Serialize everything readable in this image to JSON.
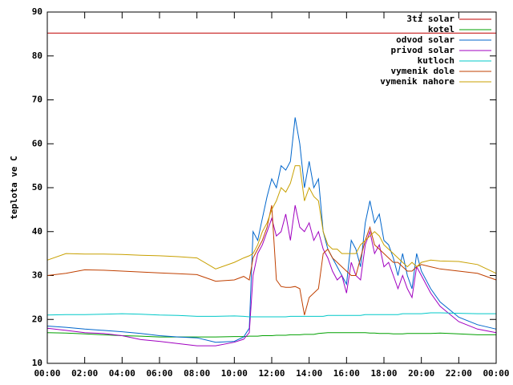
{
  "chart_data": {
    "type": "line",
    "ylabel": "teplota ve C",
    "xlim": [
      0,
      24
    ],
    "xticks": [
      {
        "value": 0,
        "label": "00:00"
      },
      {
        "value": 2,
        "label": "02:00"
      },
      {
        "value": 4,
        "label": "04:00"
      },
      {
        "value": 6,
        "label": "06:00"
      },
      {
        "value": 8,
        "label": "08:00"
      },
      {
        "value": 10,
        "label": "10:00"
      },
      {
        "value": 12,
        "label": "12:00"
      },
      {
        "value": 14,
        "label": "14:00"
      },
      {
        "value": 16,
        "label": "16:00"
      },
      {
        "value": 18,
        "label": "18:00"
      },
      {
        "value": 20,
        "label": "20:00"
      },
      {
        "value": 22,
        "label": "22:00"
      },
      {
        "value": 24,
        "label": "00:00"
      }
    ],
    "ylim": [
      10,
      90
    ],
    "yticks": [
      10,
      20,
      30,
      40,
      50,
      60,
      70,
      80,
      90
    ],
    "legend": "top-right",
    "x": [
      0,
      1,
      2,
      3,
      4,
      5,
      6,
      7,
      8,
      9,
      10,
      10.5,
      10.8,
      11,
      11.25,
      11.5,
      11.75,
      12,
      12.25,
      12.5,
      12.75,
      13,
      13.25,
      13.5,
      13.75,
      14,
      14.25,
      14.5,
      14.75,
      15,
      15.25,
      15.5,
      15.75,
      16,
      16.25,
      16.5,
      16.75,
      17,
      17.25,
      17.5,
      17.75,
      18,
      18.25,
      18.5,
      18.75,
      19,
      19.25,
      19.5,
      19.75,
      20,
      20.5,
      21,
      22,
      23,
      24
    ],
    "series": [
      {
        "name": "3ti solar",
        "color": "#c00000",
        "values": [
          85.2,
          85.2,
          85.2,
          85.2,
          85.2,
          85.2,
          85.2,
          85.2,
          85.2,
          85.2,
          85.2,
          85.2,
          85.2,
          85.2,
          85.2,
          85.2,
          85.2,
          85.2,
          85.2,
          85.2,
          85.2,
          85.2,
          85.2,
          85.2,
          85.2,
          85.2,
          85.2,
          85.2,
          85.2,
          85.2,
          85.2,
          85.2,
          85.2,
          85.2,
          85.2,
          85.2,
          85.2,
          85.2,
          85.2,
          85.2,
          85.2,
          85.2,
          85.2,
          85.2,
          85.2,
          85.2,
          85.2,
          85.2,
          85.2,
          85.2,
          85.2,
          85.2,
          85.2,
          85.2,
          85.2
        ]
      },
      {
        "name": "kotel",
        "color": "#00a000",
        "values": [
          17,
          16.9,
          16.7,
          16.5,
          16.3,
          16.2,
          16,
          16,
          16,
          16,
          16.1,
          16.1,
          16.2,
          16.2,
          16.2,
          16.3,
          16.3,
          16.3,
          16.4,
          16.4,
          16.4,
          16.5,
          16.5,
          16.5,
          16.6,
          16.6,
          16.6,
          16.8,
          16.9,
          17,
          17,
          17,
          17,
          17,
          17,
          17,
          17,
          17,
          16.9,
          16.9,
          16.8,
          16.8,
          16.8,
          16.7,
          16.7,
          16.7,
          16.8,
          16.8,
          16.8,
          16.8,
          16.8,
          16.9,
          16.7,
          16.5,
          16.5
        ]
      },
      {
        "name": "odvod solar",
        "color": "#0066cc",
        "values": [
          18.5,
          18.2,
          17.8,
          17.5,
          17.2,
          16.8,
          16.3,
          16,
          15.8,
          14.8,
          15,
          16,
          18,
          40,
          38,
          43,
          48,
          52,
          50,
          55,
          54,
          56,
          66,
          60,
          50,
          56,
          50,
          52,
          40,
          36,
          34,
          32,
          30,
          28,
          38,
          36,
          32,
          42,
          47,
          42,
          44,
          38,
          37,
          34,
          30,
          35,
          30,
          27,
          35,
          31,
          27,
          24,
          20.5,
          18.8,
          17.8
        ]
      },
      {
        "name": "privod solar",
        "color": "#a000c0",
        "values": [
          18,
          17.5,
          17,
          16.8,
          16.3,
          15.4,
          15,
          14.5,
          14,
          14,
          14.8,
          15.5,
          17,
          30,
          35,
          37,
          40,
          43,
          39,
          40,
          44,
          38,
          46,
          41,
          40,
          42,
          38,
          40,
          36,
          34,
          31,
          29,
          30,
          26,
          33,
          30,
          29,
          37,
          40,
          35,
          37,
          32,
          33,
          30,
          27,
          30,
          27,
          25,
          32,
          30,
          26,
          23,
          19.5,
          17.8,
          17
        ]
      },
      {
        "name": "kutloch",
        "color": "#00c8c8",
        "values": [
          21,
          21.1,
          21.1,
          21.2,
          21.3,
          21.2,
          21,
          20.9,
          20.7,
          20.7,
          20.8,
          20.7,
          20.6,
          20.6,
          20.6,
          20.6,
          20.6,
          20.6,
          20.6,
          20.6,
          20.6,
          20.7,
          20.7,
          20.7,
          20.7,
          20.7,
          20.7,
          20.7,
          20.7,
          20.9,
          20.9,
          20.9,
          20.9,
          20.9,
          20.9,
          20.9,
          20.9,
          21.1,
          21.1,
          21.1,
          21.1,
          21.1,
          21.1,
          21.1,
          21.1,
          21.3,
          21.3,
          21.3,
          21.3,
          21.3,
          21.5,
          21.5,
          21.4,
          21.3,
          21.3
        ]
      },
      {
        "name": "vymenik dole",
        "color": "#c04000",
        "values": [
          30,
          30.5,
          31.3,
          31.2,
          31,
          30.8,
          30.6,
          30.4,
          30.2,
          28.7,
          29,
          29.8,
          29,
          34,
          36,
          38,
          41,
          46,
          29,
          27.5,
          27.3,
          27.3,
          27.5,
          27,
          21,
          25,
          26,
          27,
          35,
          36,
          34,
          33,
          32,
          31,
          30,
          30,
          34,
          38,
          41,
          37,
          36,
          35,
          34,
          33,
          33,
          32,
          31,
          31,
          32,
          32.5,
          32,
          31.5,
          31,
          30.5,
          29
        ]
      },
      {
        "name": "vymenik nahore",
        "color": "#c8a000",
        "values": [
          33.5,
          35,
          34.9,
          34.9,
          34.8,
          34.6,
          34.5,
          34.3,
          34,
          31.5,
          33,
          34,
          34.5,
          35,
          37,
          40,
          42,
          45,
          47,
          50,
          49,
          51,
          55,
          55,
          47,
          50,
          48,
          47,
          40,
          37,
          36,
          36,
          35,
          35,
          35,
          35,
          37,
          38,
          39,
          40,
          39,
          37,
          36,
          35,
          34,
          33,
          32,
          33,
          32,
          33,
          33.5,
          33.3,
          33.2,
          32.5,
          30.5
        ]
      }
    ]
  }
}
